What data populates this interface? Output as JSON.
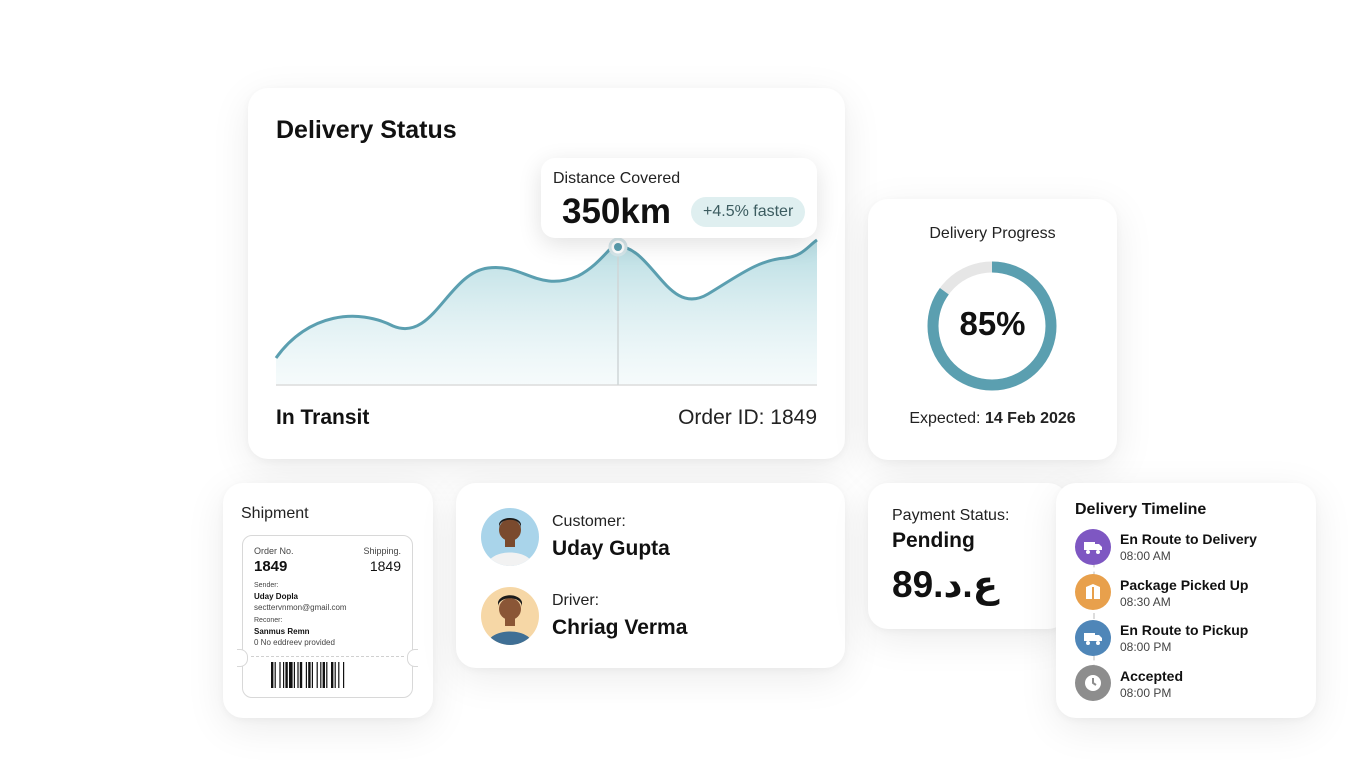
{
  "status_card": {
    "title": "Delivery Status",
    "tooltip_label": "Distance Covered",
    "tooltip_value": "350km",
    "tooltip_badge": "+4.5% faster",
    "state": "In Transit",
    "order_id": "Order ID: 1849",
    "accent": "#5b9fb0"
  },
  "progress_card": {
    "title": "Delivery Progress",
    "value_text": "85%",
    "value": 0.85,
    "expected_label": "Expected:",
    "expected_date": "14 Feb 2026"
  },
  "shipment_card": {
    "title": "Shipment",
    "order_label": "Order No.",
    "order_value": "1849",
    "shipping_label": "Shipping.",
    "shipping_value": "1849",
    "sender_label": "Sender:",
    "sender_name": "Uday Dopla",
    "sender_email": "secttervnmon@gmail.com",
    "receiver_label": "Reconer:",
    "receiver_name": "Sanmus Remn",
    "receiver_address": "0 No eddreev provided"
  },
  "people_card": {
    "customer_label": "Customer:",
    "customer_name": "Uday Gupta",
    "driver_label": "Driver:",
    "driver_name": "Chriag Verma"
  },
  "payment_card": {
    "label": "Payment Status:",
    "status": "Pending",
    "amount": "89.ع.د"
  },
  "timeline_card": {
    "title": "Delivery Timeline",
    "items": [
      {
        "label": "En Route to Delivery",
        "time": "08:00 AM",
        "icon": "truck-icon",
        "color": "#7e57c2"
      },
      {
        "label": "Package Picked Up",
        "time": "08:30 AM",
        "icon": "package-icon",
        "color": "#e8a04c"
      },
      {
        "label": "En Route to Pickup",
        "time": "08:00 PM",
        "icon": "truck-icon",
        "color": "#4f86b8"
      },
      {
        "label": "Accepted",
        "time": "08:00 PM",
        "icon": "clock-icon",
        "color": "#8d8d8d"
      }
    ]
  }
}
